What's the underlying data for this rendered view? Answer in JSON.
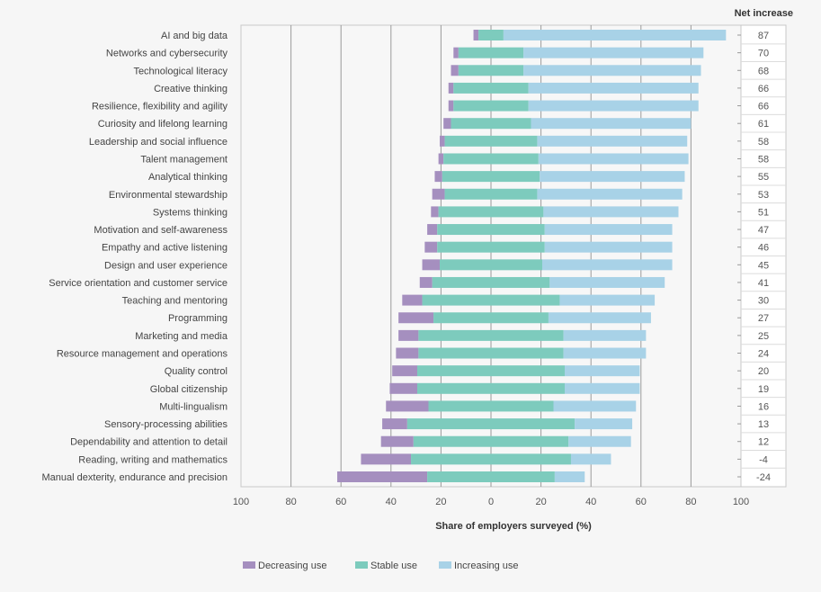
{
  "chart_data": {
    "type": "bar",
    "stacked": "diverging",
    "xlabel": "Share of employers surveyed (%)",
    "net_header": "Net increase",
    "xlim": [
      -100,
      100
    ],
    "xticks": [
      -100,
      -80,
      -60,
      -40,
      -20,
      0,
      20,
      40,
      60,
      80,
      100
    ],
    "xtick_labels": [
      "100",
      "80",
      "60",
      "40",
      "20",
      "0",
      "20",
      "40",
      "60",
      "80",
      "100"
    ],
    "grid": true,
    "legend_position": "bottom",
    "categories": [
      "AI and big data",
      "Networks and cybersecurity",
      "Technological literacy",
      "Creative thinking",
      "Resilience, flexibility and agility",
      "Curiosity and lifelong learning",
      "Leadership and social influence",
      "Talent management",
      "Analytical thinking",
      "Environmental stewardship",
      "Systems thinking",
      "Motivation and self-awareness",
      "Empathy and active listening",
      "Design and user experience",
      "Service orientation and customer service",
      "Teaching and mentoring",
      "Programming",
      "Marketing and media",
      "Resource management and operations",
      "Quality control",
      "Global citizenship",
      "Multi-lingualism",
      "Sensory-processing abilities",
      "Dependability and attention to detail",
      "Reading, writing and mathematics",
      "Manual dexterity, endurance and precision"
    ],
    "series": [
      {
        "name": "Decreasing use",
        "color": "#a58fbf",
        "values": [
          2,
          2,
          3,
          2,
          2,
          3,
          2,
          2,
          3,
          5,
          3,
          4,
          5,
          7,
          5,
          8,
          14,
          8,
          9,
          10,
          11,
          17,
          10,
          13,
          20,
          36
        ]
      },
      {
        "name": "Stable use",
        "color": "#7dcbbd",
        "values": [
          10,
          26,
          26,
          30,
          30,
          32,
          37,
          38,
          39,
          37,
          42,
          43,
          43,
          41,
          47,
          55,
          46,
          58,
          58,
          59,
          59,
          50,
          67,
          62,
          64,
          51
        ]
      },
      {
        "name": "Increasing use",
        "color": "#a8d2e7",
        "values": [
          89,
          72,
          71,
          68,
          68,
          64,
          60,
          60,
          58,
          58,
          54,
          51,
          51,
          52,
          46,
          38,
          41,
          33,
          33,
          30,
          30,
          33,
          23,
          25,
          16,
          12
        ]
      }
    ],
    "net_increase": [
      "87",
      "70",
      "68",
      "66",
      "66",
      "61",
      "58",
      "58",
      "55",
      "53",
      "51",
      "47",
      "46",
      "45",
      "41",
      "30",
      "27",
      "25",
      "24",
      "20",
      "19",
      "16",
      "13",
      "12",
      "-4",
      "-24"
    ]
  }
}
